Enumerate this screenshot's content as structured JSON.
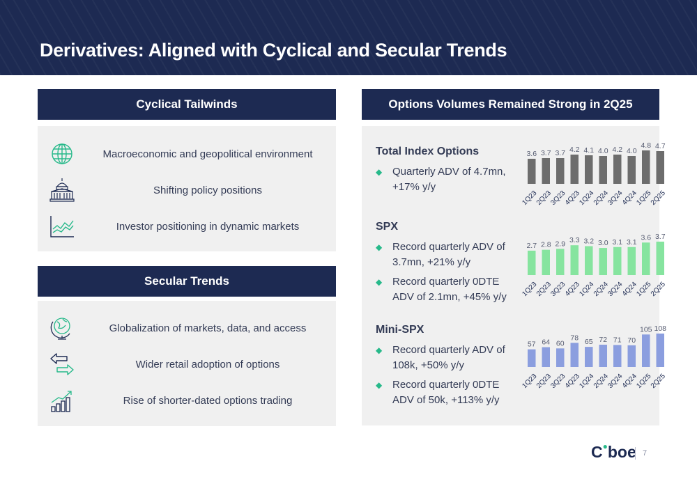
{
  "page": {
    "title": "Derivatives: Aligned with Cyclical and Secular Trends",
    "page_number": "7"
  },
  "brand": {
    "logo_text": "Cboe",
    "navy": "#1d2a52",
    "green": "#27b98a"
  },
  "cyclical": {
    "header": "Cyclical Tailwinds",
    "items": [
      {
        "icon": "globe-icon",
        "label": "Macroeconomic and geopolitical environment"
      },
      {
        "icon": "capitol-building-icon",
        "label": "Shifting policy positions"
      },
      {
        "icon": "line-chart-icon",
        "label": "Investor positioning in dynamic markets"
      }
    ]
  },
  "secular": {
    "header": "Secular Trends",
    "items": [
      {
        "icon": "desk-globe-icon",
        "label": "Globalization of markets, data, and access"
      },
      {
        "icon": "exchange-arrows-icon",
        "label": "Wider retail adoption of options"
      },
      {
        "icon": "growth-bars-icon",
        "label": "Rise of shorter-dated options trading"
      }
    ]
  },
  "volumes": {
    "header": "Options Volumes Remained Strong in 2Q25",
    "sections": [
      {
        "title": "Total Index Options",
        "bullets": [
          "Quarterly ADV of 4.7mn, +17% y/y"
        ]
      },
      {
        "title": "SPX",
        "bullets": [
          "Record quarterly ADV of 3.7mn, +21% y/y",
          "Record quarterly 0DTE ADV of 2.1mn, +45% y/y"
        ]
      },
      {
        "title": "Mini-SPX",
        "bullets": [
          "Record quarterly ADV of 108k, +50% y/y",
          "Record quarterly 0DTE ADV of 50k, +113% y/y"
        ]
      }
    ]
  },
  "chart_data": [
    {
      "type": "bar",
      "categories": [
        "1Q23",
        "2Q23",
        "3Q23",
        "4Q23",
        "1Q24",
        "2Q24",
        "3Q24",
        "4Q24",
        "1Q25",
        "2Q25"
      ],
      "values": [
        3.6,
        3.7,
        3.7,
        4.2,
        4.1,
        4.0,
        4.2,
        4.0,
        4.8,
        4.7
      ],
      "labels": [
        "3.6",
        "3.7",
        "3.7",
        "4.2",
        "4.1",
        "4.0",
        "4.2",
        "4.0",
        "4.8",
        "4.7"
      ],
      "color": "#6d6d6d",
      "grid": false
    },
    {
      "type": "bar",
      "categories": [
        "1Q23",
        "2Q23",
        "3Q23",
        "4Q23",
        "1Q24",
        "2Q24",
        "3Q24",
        "4Q24",
        "1Q25",
        "2Q25"
      ],
      "values": [
        2.7,
        2.8,
        2.9,
        3.3,
        3.2,
        3.0,
        3.1,
        3.1,
        3.6,
        3.7
      ],
      "labels": [
        "2.7",
        "2.8",
        "2.9",
        "3.3",
        "3.2",
        "3.0",
        "3.1",
        "3.1",
        "3.6",
        "3.7"
      ],
      "color": "#86e49f",
      "grid": false
    },
    {
      "type": "bar",
      "categories": [
        "1Q23",
        "2Q23",
        "3Q23",
        "4Q23",
        "1Q24",
        "2Q24",
        "3Q24",
        "4Q24",
        "1Q25",
        "2Q25"
      ],
      "values": [
        57,
        64,
        60,
        78,
        65,
        72,
        71,
        70,
        105,
        108
      ],
      "labels": [
        "57",
        "64",
        "60",
        "78",
        "65",
        "72",
        "71",
        "70",
        "105",
        "108"
      ],
      "color": "#8b9edf",
      "grid": false
    }
  ]
}
